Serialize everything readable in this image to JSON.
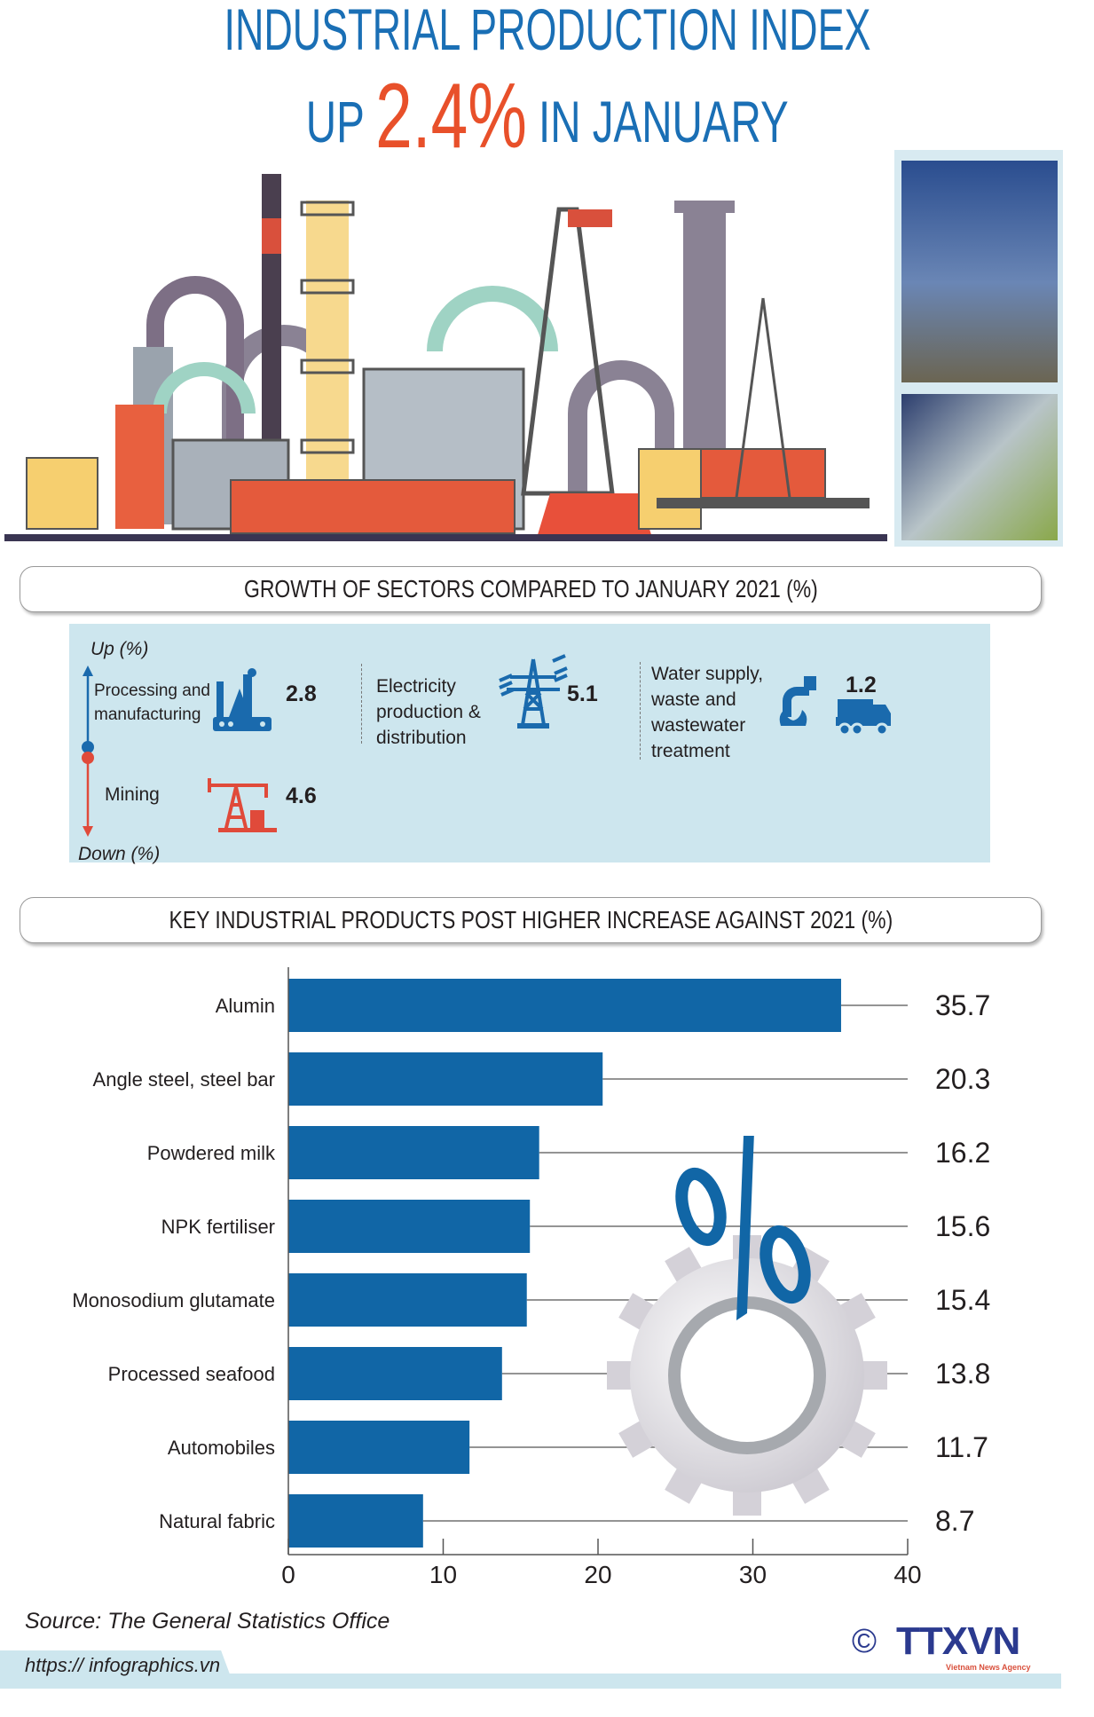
{
  "header": {
    "title_line1": "INDUSTRIAL PRODUCTION INDEX",
    "title_prefix": "UP",
    "headline_value": "2.4%",
    "title_suffix": "IN JANUARY"
  },
  "sectors": {
    "heading": "GROWTH OF SECTORS COMPARED TO JANUARY 2021 (%)",
    "up_label": "Up (%)",
    "down_label": "Down (%)",
    "up_color": "#1a6aad",
    "down_color": "#e04a3a",
    "items": [
      {
        "lines": [
          "Processing and",
          "manufacturing"
        ],
        "value": "2.8",
        "direction": "up",
        "icon": "factory-icon"
      },
      {
        "lines": [
          "Electricity",
          "production &",
          "distribution"
        ],
        "value": "5.1",
        "direction": "up",
        "icon": "power-tower-icon"
      },
      {
        "lines": [
          "Water supply,",
          "waste and",
          "wastewater",
          "treatment"
        ],
        "value": "1.2",
        "direction": "up",
        "icon": "water-tap-truck-icon"
      },
      {
        "lines": [
          "Mining"
        ],
        "value": "4.6",
        "direction": "down",
        "icon": "oil-pump-icon"
      }
    ]
  },
  "chart_data": {
    "type": "bar",
    "orientation": "horizontal",
    "title": "KEY INDUSTRIAL PRODUCTS POST HIGHER INCREASE AGAINST 2021 (%)",
    "categories": [
      "Alumin",
      "Angle steel, steel bar",
      "Powdered milk",
      "NPK fertiliser",
      "Monosodium glutamate",
      "Processed seafood",
      "Automobiles",
      "Natural fabric"
    ],
    "values": [
      35.7,
      20.3,
      16.2,
      15.6,
      15.4,
      13.8,
      11.7,
      8.7
    ],
    "value_labels": [
      "35.7",
      "20.3",
      "16.2",
      "15.6",
      "15.4",
      "13.8",
      "11.7",
      "8.7"
    ],
    "xlim": [
      0,
      40
    ],
    "xticks": [
      "0",
      "10",
      "20",
      "30",
      "40"
    ],
    "bar_color": "#1166a6",
    "grid": false
  },
  "footer": {
    "source": "Source: The  General  Statistics  Office",
    "url": "https:// infographics.vn",
    "logo_text": "TTXVN",
    "logo_subtext": "Vietnam News Agency",
    "copyright": "©"
  }
}
